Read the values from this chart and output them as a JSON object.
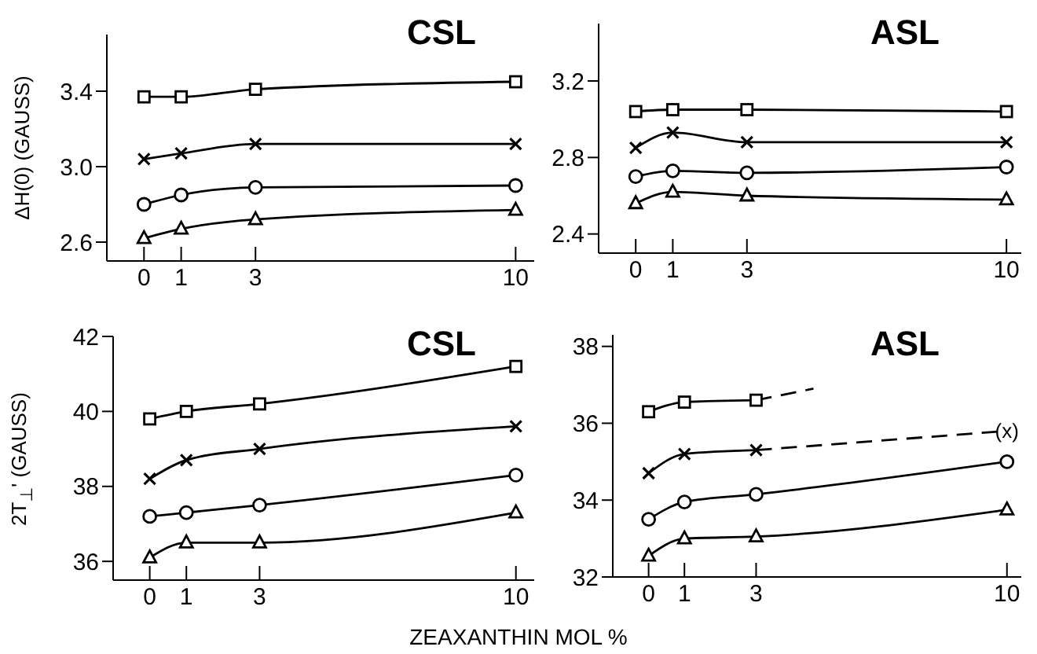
{
  "chart_data": [
    {
      "type": "line",
      "title": "CSL",
      "ylabel": "ΔH(0) (GAUSS)",
      "xlim": [
        -1,
        10.5
      ],
      "xticks": [
        0,
        1,
        3,
        10
      ],
      "ylim": [
        2.5,
        3.7
      ],
      "yticks": [
        2.6,
        {
          "value": 3,
          "label": "3.0"
        },
        3.4
      ],
      "grid": false,
      "legend": false,
      "series": [
        {
          "x": [
            0,
            1,
            3,
            10
          ],
          "values": [
            3.37,
            3.37,
            3.41,
            3.45
          ],
          "color": "#000000",
          "marker": "square",
          "line_style": "solid"
        },
        {
          "x": [
            0,
            1,
            3,
            10
          ],
          "values": [
            3.04,
            3.07,
            3.12,
            3.12
          ],
          "color": "#000000",
          "marker": "cross",
          "line_style": "solid"
        },
        {
          "x": [
            0,
            1,
            3,
            10
          ],
          "values": [
            2.8,
            2.85,
            2.89,
            2.9
          ],
          "color": "#000000",
          "marker": "circle",
          "line_style": "solid"
        },
        {
          "x": [
            0,
            1,
            3,
            10
          ],
          "values": [
            2.62,
            2.67,
            2.72,
            2.77
          ],
          "color": "#000000",
          "marker": "triangle",
          "line_style": "solid"
        }
      ]
    },
    {
      "type": "line",
      "title": "ASL",
      "xlim": [
        -1,
        10.4
      ],
      "xticks": [
        0,
        1,
        3,
        10
      ],
      "ylim": [
        2.3,
        3.5
      ],
      "yticks": [
        2.4,
        2.8,
        3.2
      ],
      "grid": false,
      "legend": false,
      "series": [
        {
          "x": [
            0,
            1,
            3,
            10
          ],
          "values": [
            3.04,
            3.05,
            3.05,
            3.04
          ],
          "color": "#000000",
          "marker": "square",
          "line_style": "solid"
        },
        {
          "x": [
            0,
            1,
            3,
            10
          ],
          "values": [
            2.85,
            2.93,
            2.88,
            2.88
          ],
          "color": "#000000",
          "marker": "cross",
          "line_style": "solid"
        },
        {
          "x": [
            0,
            1,
            3,
            10
          ],
          "values": [
            2.7,
            2.73,
            2.72,
            2.75
          ],
          "color": "#000000",
          "marker": "circle",
          "line_style": "solid"
        },
        {
          "x": [
            0,
            1,
            3,
            10
          ],
          "values": [
            2.56,
            2.62,
            2.6,
            2.58
          ],
          "color": "#000000",
          "marker": "triangle",
          "line_style": "solid"
        }
      ]
    },
    {
      "type": "line",
      "title": "CSL",
      "ylabel": "2T$_{⊥}$' (GAUSS)",
      "xlabel": "ZEAXANTHIN MOL %",
      "xlim": [
        -1,
        10.5
      ],
      "xticks": [
        0,
        1,
        3,
        10
      ],
      "ylim": [
        35.5,
        42
      ],
      "yticks": [
        36,
        38,
        40,
        42
      ],
      "grid": false,
      "legend": false,
      "series": [
        {
          "x": [
            0,
            1,
            3,
            10
          ],
          "values": [
            39.8,
            40,
            40.2,
            41.2
          ],
          "color": "#000000",
          "marker": "square",
          "line_style": "solid"
        },
        {
          "x": [
            0,
            1,
            3,
            10
          ],
          "values": [
            38.2,
            38.7,
            39,
            39.6
          ],
          "color": "#000000",
          "marker": "cross",
          "line_style": "solid"
        },
        {
          "x": [
            0,
            1,
            3,
            10
          ],
          "values": [
            37.2,
            37.3,
            37.5,
            38.3
          ],
          "color": "#000000",
          "marker": "circle",
          "line_style": "solid"
        },
        {
          "x": [
            0,
            1,
            3,
            10
          ],
          "values": [
            36.1,
            36.5,
            36.5,
            37.3
          ],
          "color": "#000000",
          "marker": "triangle",
          "line_style": "solid"
        }
      ]
    },
    {
      "type": "line",
      "title": "ASL",
      "xlim": [
        -1,
        10.4
      ],
      "xticks": [
        0,
        1,
        3,
        10
      ],
      "ylim": [
        32,
        38.3
      ],
      "yticks": [
        32,
        34,
        36,
        38
      ],
      "grid": false,
      "legend": false,
      "annotations": [
        {
          "text": "(x)",
          "x": 10,
          "y": 35.8
        }
      ],
      "series": [
        {
          "x": [
            0,
            1,
            3
          ],
          "values": [
            36.3,
            36.55,
            36.6
          ],
          "color": "#000000",
          "marker": "square",
          "line_style": "solid"
        },
        {
          "x": [
            3,
            4.6
          ],
          "values": [
            36.6,
            36.9
          ],
          "color": "#000000",
          "marker": "none",
          "line_style": "dashed"
        },
        {
          "x": [
            0,
            1,
            3
          ],
          "values": [
            34.7,
            35.2,
            35.3
          ],
          "color": "#000000",
          "marker": "cross",
          "line_style": "solid"
        },
        {
          "x": [
            3,
            10
          ],
          "values": [
            35.3,
            35.8
          ],
          "color": "#000000",
          "marker": "none",
          "line_style": "dashed"
        },
        {
          "x": [
            0,
            1,
            3,
            10
          ],
          "values": [
            33.5,
            33.95,
            34.15,
            35
          ],
          "color": "#000000",
          "marker": "circle",
          "line_style": "solid"
        },
        {
          "x": [
            0,
            1,
            3,
            10
          ],
          "values": [
            32.55,
            33,
            33.05,
            33.75
          ],
          "color": "#000000",
          "marker": "triangle",
          "line_style": "solid"
        }
      ]
    }
  ]
}
